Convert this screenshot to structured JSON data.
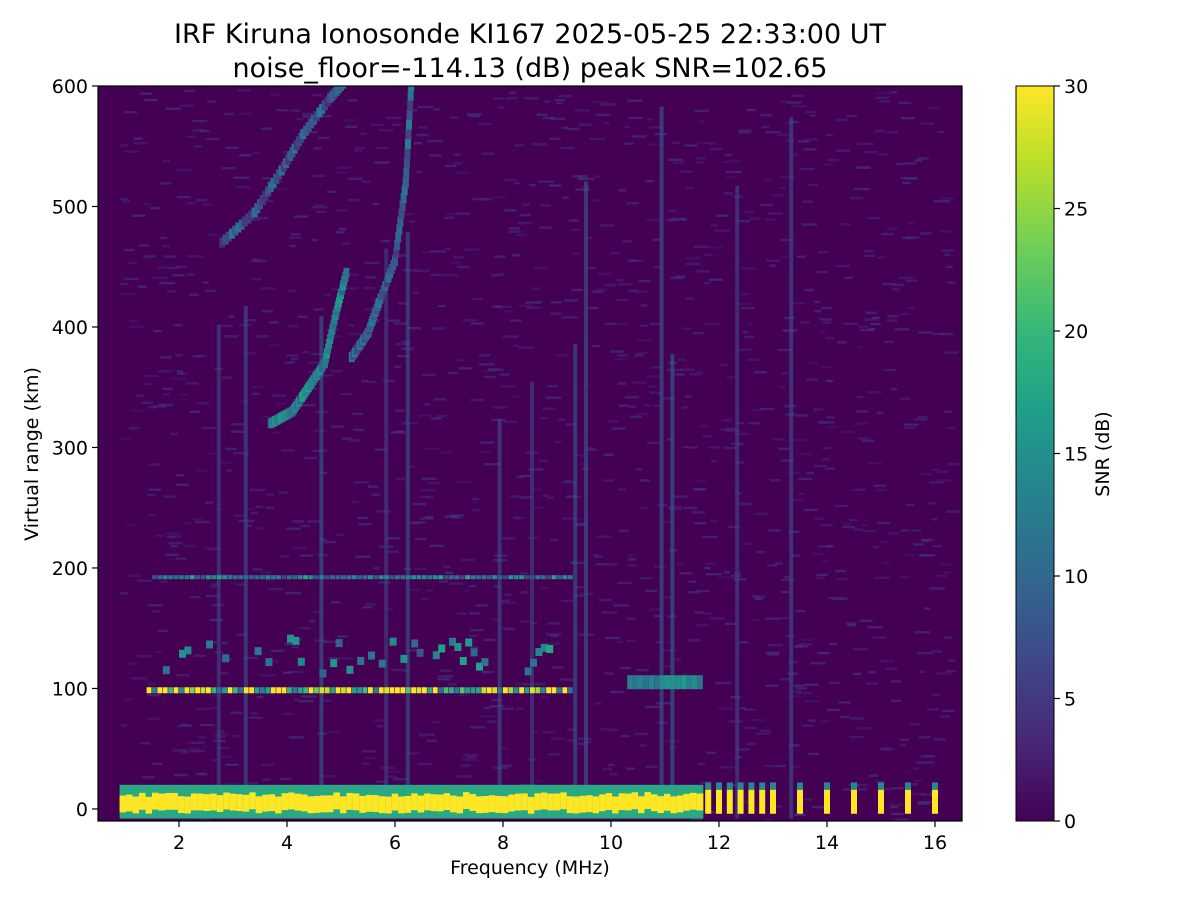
{
  "chart_data": {
    "type": "heatmap",
    "title": "IRF Kiruna Ionosonde KI167 2025-05-25 22:33:00  UT",
    "subtitle": "noise_floor=-114.13 (dB) peak SNR=102.65",
    "xlabel": "Frequency (MHz)",
    "ylabel": "Virtual range (km)",
    "colorbar_label": "SNR (dB)",
    "colormap": "viridis",
    "colormap_colors": [
      "#440154",
      "#482878",
      "#3e4989",
      "#31688e",
      "#26828e",
      "#1f9e89",
      "#35b779",
      "#6ece58",
      "#b5de2b",
      "#fde725"
    ],
    "background_color": "#440154",
    "xlim": [
      0.5,
      16.5
    ],
    "ylim": [
      -10,
      600
    ],
    "clim": [
      0,
      30
    ],
    "x_ticks": [
      2,
      4,
      6,
      8,
      10,
      12,
      14,
      16
    ],
    "y_ticks": [
      0,
      100,
      200,
      300,
      400,
      500,
      600
    ],
    "colorbar_ticks": [
      0,
      5,
      10,
      15,
      20,
      25,
      30
    ],
    "x_tick_labels": [
      "2",
      "4",
      "6",
      "8",
      "10",
      "12",
      "14",
      "16"
    ],
    "y_tick_labels": [
      "0",
      "100",
      "200",
      "300",
      "400",
      "500",
      "600"
    ],
    "colorbar_tick_labels": [
      "0",
      "5",
      "10",
      "15",
      "20",
      "25",
      "30"
    ],
    "grid": false,
    "features": [
      {
        "trace": "ground",
        "freq_range": [
          0.9,
          11.6
        ],
        "range_km": [
          -8,
          20
        ],
        "snr": 30
      },
      {
        "trace": "E-layer",
        "freq_range": [
          1.4,
          9.2
        ],
        "range_km": 95,
        "snr": 22
      },
      {
        "trace": "E-layer blobs",
        "freq_range": [
          10.3,
          11.6
        ],
        "range_km": 105,
        "snr": 17
      },
      {
        "trace": "Es second hop",
        "freq_range": [
          1.5,
          9.2
        ],
        "range_km": 192,
        "snr": 12
      },
      {
        "trace": "F-layer",
        "points": [
          [
            3.7,
            320
          ],
          [
            4.1,
            330
          ],
          [
            4.4,
            350
          ],
          [
            4.7,
            370
          ],
          [
            4.9,
            410
          ],
          [
            5.1,
            445
          ]
        ],
        "snr": 17
      },
      {
        "trace": "F-layer x",
        "points": [
          [
            5.2,
            375
          ],
          [
            5.5,
            395
          ],
          [
            5.7,
            420
          ],
          [
            6.0,
            455
          ],
          [
            6.2,
            520
          ],
          [
            6.3,
            600
          ]
        ],
        "snr": 13
      },
      {
        "trace": "F second hop",
        "points": [
          [
            2.8,
            470
          ],
          [
            3.4,
            495
          ],
          [
            3.9,
            530
          ],
          [
            4.3,
            560
          ],
          [
            4.8,
            590
          ],
          [
            5.2,
            610
          ]
        ],
        "snr": 12
      },
      {
        "trace": "high-frequency ground bursts",
        "x": [
          11.8,
          12.0,
          12.2,
          12.4,
          12.6,
          12.8,
          13.0,
          13.5,
          14.0,
          14.5,
          15.0,
          15.5,
          16.0
        ],
        "snr": 30
      }
    ]
  }
}
